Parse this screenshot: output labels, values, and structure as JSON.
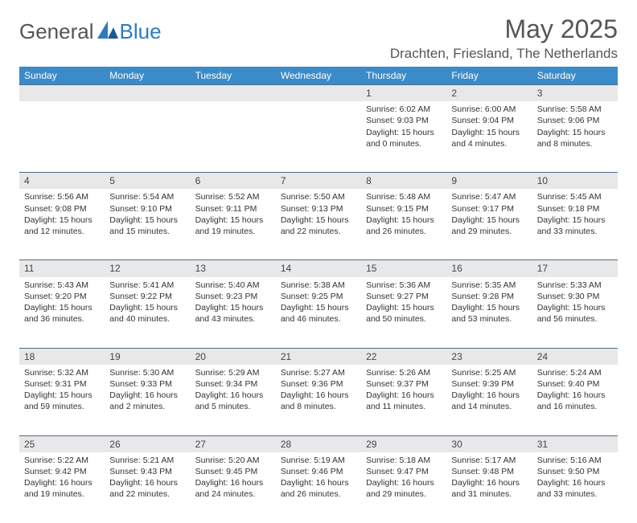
{
  "brand": {
    "part1": "General",
    "part2": "Blue"
  },
  "title": "May 2025",
  "location": "Drachten, Friesland, The Netherlands",
  "colors": {
    "header_bg": "#3b8bc8",
    "header_text": "#ffffff",
    "daynum_bg": "#e8e8e8",
    "border": "#4a6a8a",
    "text": "#333333",
    "brand_blue": "#2b7cc0"
  },
  "weekdays": [
    "Sunday",
    "Monday",
    "Tuesday",
    "Wednesday",
    "Thursday",
    "Friday",
    "Saturday"
  ],
  "weeks": [
    [
      null,
      null,
      null,
      null,
      {
        "n": "1",
        "sr": "6:02 AM",
        "ss": "9:03 PM",
        "dl": "15 hours and 0 minutes."
      },
      {
        "n": "2",
        "sr": "6:00 AM",
        "ss": "9:04 PM",
        "dl": "15 hours and 4 minutes."
      },
      {
        "n": "3",
        "sr": "5:58 AM",
        "ss": "9:06 PM",
        "dl": "15 hours and 8 minutes."
      }
    ],
    [
      {
        "n": "4",
        "sr": "5:56 AM",
        "ss": "9:08 PM",
        "dl": "15 hours and 12 minutes."
      },
      {
        "n": "5",
        "sr": "5:54 AM",
        "ss": "9:10 PM",
        "dl": "15 hours and 15 minutes."
      },
      {
        "n": "6",
        "sr": "5:52 AM",
        "ss": "9:11 PM",
        "dl": "15 hours and 19 minutes."
      },
      {
        "n": "7",
        "sr": "5:50 AM",
        "ss": "9:13 PM",
        "dl": "15 hours and 22 minutes."
      },
      {
        "n": "8",
        "sr": "5:48 AM",
        "ss": "9:15 PM",
        "dl": "15 hours and 26 minutes."
      },
      {
        "n": "9",
        "sr": "5:47 AM",
        "ss": "9:17 PM",
        "dl": "15 hours and 29 minutes."
      },
      {
        "n": "10",
        "sr": "5:45 AM",
        "ss": "9:18 PM",
        "dl": "15 hours and 33 minutes."
      }
    ],
    [
      {
        "n": "11",
        "sr": "5:43 AM",
        "ss": "9:20 PM",
        "dl": "15 hours and 36 minutes."
      },
      {
        "n": "12",
        "sr": "5:41 AM",
        "ss": "9:22 PM",
        "dl": "15 hours and 40 minutes."
      },
      {
        "n": "13",
        "sr": "5:40 AM",
        "ss": "9:23 PM",
        "dl": "15 hours and 43 minutes."
      },
      {
        "n": "14",
        "sr": "5:38 AM",
        "ss": "9:25 PM",
        "dl": "15 hours and 46 minutes."
      },
      {
        "n": "15",
        "sr": "5:36 AM",
        "ss": "9:27 PM",
        "dl": "15 hours and 50 minutes."
      },
      {
        "n": "16",
        "sr": "5:35 AM",
        "ss": "9:28 PM",
        "dl": "15 hours and 53 minutes."
      },
      {
        "n": "17",
        "sr": "5:33 AM",
        "ss": "9:30 PM",
        "dl": "15 hours and 56 minutes."
      }
    ],
    [
      {
        "n": "18",
        "sr": "5:32 AM",
        "ss": "9:31 PM",
        "dl": "15 hours and 59 minutes."
      },
      {
        "n": "19",
        "sr": "5:30 AM",
        "ss": "9:33 PM",
        "dl": "16 hours and 2 minutes."
      },
      {
        "n": "20",
        "sr": "5:29 AM",
        "ss": "9:34 PM",
        "dl": "16 hours and 5 minutes."
      },
      {
        "n": "21",
        "sr": "5:27 AM",
        "ss": "9:36 PM",
        "dl": "16 hours and 8 minutes."
      },
      {
        "n": "22",
        "sr": "5:26 AM",
        "ss": "9:37 PM",
        "dl": "16 hours and 11 minutes."
      },
      {
        "n": "23",
        "sr": "5:25 AM",
        "ss": "9:39 PM",
        "dl": "16 hours and 14 minutes."
      },
      {
        "n": "24",
        "sr": "5:24 AM",
        "ss": "9:40 PM",
        "dl": "16 hours and 16 minutes."
      }
    ],
    [
      {
        "n": "25",
        "sr": "5:22 AM",
        "ss": "9:42 PM",
        "dl": "16 hours and 19 minutes."
      },
      {
        "n": "26",
        "sr": "5:21 AM",
        "ss": "9:43 PM",
        "dl": "16 hours and 22 minutes."
      },
      {
        "n": "27",
        "sr": "5:20 AM",
        "ss": "9:45 PM",
        "dl": "16 hours and 24 minutes."
      },
      {
        "n": "28",
        "sr": "5:19 AM",
        "ss": "9:46 PM",
        "dl": "16 hours and 26 minutes."
      },
      {
        "n": "29",
        "sr": "5:18 AM",
        "ss": "9:47 PM",
        "dl": "16 hours and 29 minutes."
      },
      {
        "n": "30",
        "sr": "5:17 AM",
        "ss": "9:48 PM",
        "dl": "16 hours and 31 minutes."
      },
      {
        "n": "31",
        "sr": "5:16 AM",
        "ss": "9:50 PM",
        "dl": "16 hours and 33 minutes."
      }
    ]
  ],
  "labels": {
    "sunrise": "Sunrise:",
    "sunset": "Sunset:",
    "daylight": "Daylight:"
  }
}
